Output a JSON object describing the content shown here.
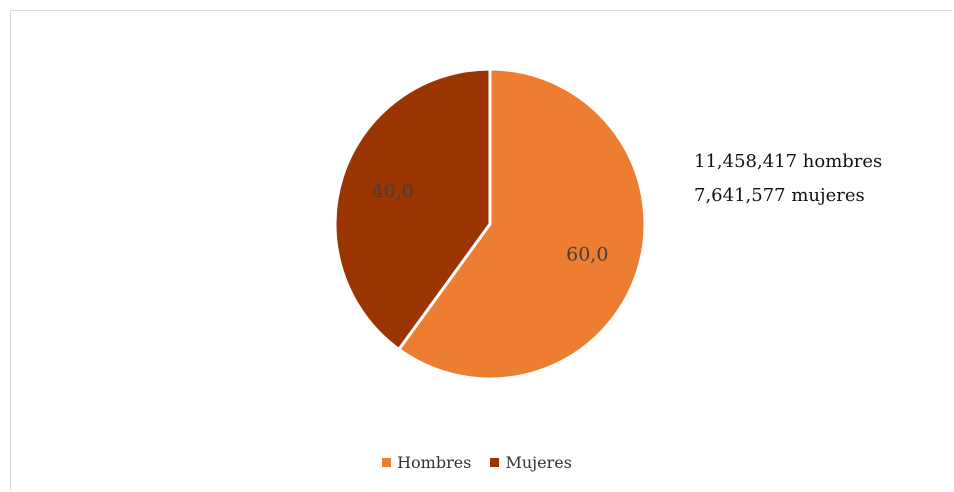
{
  "chart_data": {
    "type": "pie",
    "title": "",
    "slices": [
      {
        "label": "Hombres",
        "value": 60.0,
        "display": "60,0",
        "color": "#ed7d31"
      },
      {
        "label": "Mujeres",
        "value": 40.0,
        "display": "40,0",
        "color": "#9a3400"
      }
    ],
    "annotations": [
      "11,458,417 hombres",
      "7,641,577 mujeres"
    ],
    "legend_position": "bottom"
  },
  "colors": {
    "label_text": "#404040",
    "border": "#d9d9d9"
  }
}
